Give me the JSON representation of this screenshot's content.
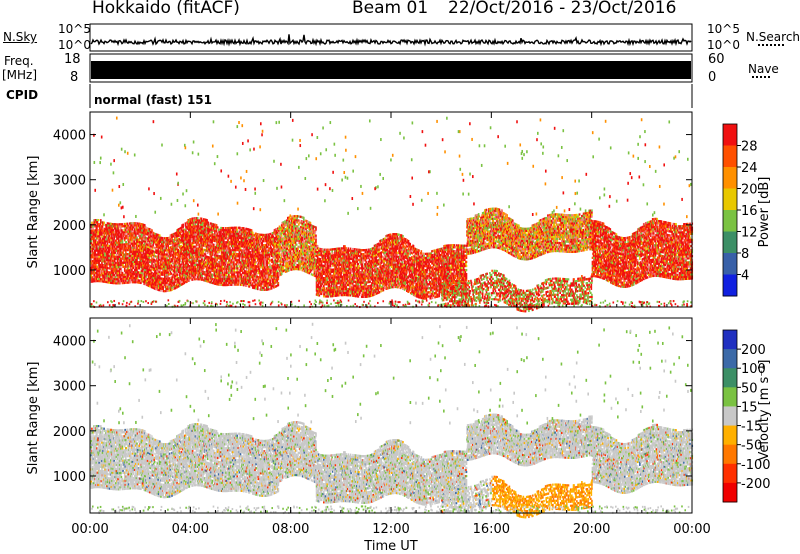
{
  "header": {
    "station": "Hokkaido (fitACF)",
    "beam": "Beam 01",
    "date_range": "22/Oct/2016 - 23/Oct/2016"
  },
  "top_panels": {
    "nsky_label": "N.Sky",
    "nsearch_label": "N.Search",
    "nave_label": "Nave",
    "freq_label": "Freq.",
    "freq_unit": "[MHz]",
    "cpid_label": "CPID",
    "noise_tick_hi": "10^5",
    "noise_tick_lo": "10^0",
    "freq_ticks": [
      "18",
      "8"
    ],
    "nave_ticks": [
      "60",
      "0"
    ],
    "cpid_text": "normal (fast) 151"
  },
  "chart_data": [
    {
      "type": "heatmap",
      "name": "power-panel",
      "ylabel": "Slant Range [km]",
      "ylim": [
        180,
        4500
      ],
      "y_ticks": [
        "4000",
        "3000",
        "2000",
        "1000"
      ],
      "y_tick_values": [
        4000,
        3000,
        2000,
        1000
      ],
      "x_ticks": [
        "00:00",
        "04:00",
        "08:00",
        "12:00",
        "16:00",
        "20:00",
        "00:00"
      ],
      "x_tick_hours": [
        0,
        4,
        8,
        12,
        16,
        20,
        24
      ],
      "colorbar": {
        "label": "Power [dB]",
        "tick_labels": [
          "28",
          "24",
          "20",
          "16",
          "12",
          "8",
          "4"
        ],
        "colors": [
          "#f01010",
          "#ff5000",
          "#ff9000",
          "#e8c800",
          "#7ac242",
          "#3c8f66",
          "#3860a8",
          "#1020e0"
        ]
      },
      "echo_bands": [
        {
          "t": [
            0,
            7.5
          ],
          "range": [
            700,
            2000
          ],
          "level": "high"
        },
        {
          "t": [
            7.5,
            9
          ],
          "range": [
            900,
            2000
          ],
          "level": "mid"
        },
        {
          "t": [
            9,
            15
          ],
          "range": [
            500,
            1600
          ],
          "level": "high"
        },
        {
          "t": [
            15,
            20
          ],
          "range": [
            1400,
            2200
          ],
          "level": "mid"
        },
        {
          "t": [
            20,
            24
          ],
          "range": [
            800,
            2000
          ],
          "level": "high"
        },
        {
          "t": [
            14,
            20
          ],
          "range": [
            250,
            800
          ],
          "level": "low"
        }
      ]
    },
    {
      "type": "heatmap",
      "name": "velocity-panel",
      "ylabel": "Slant Range [km]",
      "xlabel": "Time UT",
      "ylim": [
        180,
        4500
      ],
      "y_ticks": [
        "4000",
        "3000",
        "2000",
        "1000"
      ],
      "y_tick_values": [
        4000,
        3000,
        2000,
        1000
      ],
      "x_ticks": [
        "00:00",
        "04:00",
        "08:00",
        "12:00",
        "16:00",
        "20:00",
        "00:00"
      ],
      "x_tick_hours": [
        0,
        4,
        8,
        12,
        16,
        20,
        24
      ],
      "colorbar": {
        "label": "Velocity [m s⁻¹]",
        "tick_labels": [
          "200",
          "100",
          "50",
          "15",
          "-15",
          "-50",
          "-100",
          "-200"
        ],
        "colors": [
          "#2030c0",
          "#3c6aa8",
          "#3c8f66",
          "#7ac242",
          "#c8c8c8",
          "#ffb000",
          "#ff7800",
          "#ff3000",
          "#f00000"
        ]
      }
    }
  ]
}
